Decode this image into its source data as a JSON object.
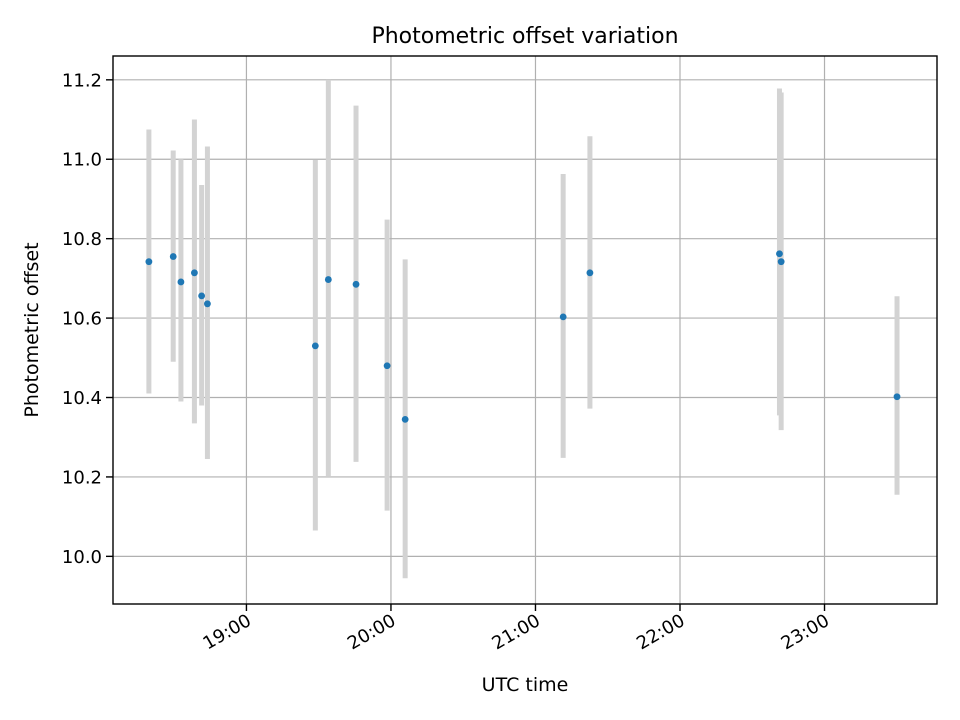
{
  "chart_data": {
    "type": "scatter",
    "title": "Photometric offset variation",
    "xlabel": "UTC time",
    "ylabel": "Photometric offset",
    "x_unit": "minutes since 00:00 UTC",
    "xlim": [
      1084.6,
      1426.7
    ],
    "ylim": [
      9.88,
      11.26
    ],
    "grid": true,
    "series": [
      {
        "name": "offset",
        "color": "#1f77b4",
        "errorbar_color": "#d3d3d3",
        "points": [
          {
            "x": 1099.5,
            "y": 10.742,
            "lo": 10.41,
            "hi": 11.075
          },
          {
            "x": 1109.6,
            "y": 10.755,
            "lo": 10.49,
            "hi": 11.022
          },
          {
            "x": 1112.8,
            "y": 10.691,
            "lo": 10.39,
            "hi": 11.0
          },
          {
            "x": 1118.4,
            "y": 10.714,
            "lo": 10.335,
            "hi": 11.1
          },
          {
            "x": 1121.4,
            "y": 10.656,
            "lo": 10.38,
            "hi": 10.935
          },
          {
            "x": 1123.8,
            "y": 10.636,
            "lo": 10.245,
            "hi": 11.032
          },
          {
            "x": 1168.6,
            "y": 10.53,
            "lo": 10.065,
            "hi": 10.998
          },
          {
            "x": 1174.0,
            "y": 10.697,
            "lo": 10.2,
            "hi": 11.2
          },
          {
            "x": 1185.5,
            "y": 10.685,
            "lo": 10.238,
            "hi": 11.135
          },
          {
            "x": 1198.4,
            "y": 10.48,
            "lo": 10.115,
            "hi": 10.848
          },
          {
            "x": 1205.9,
            "y": 10.345,
            "lo": 9.945,
            "hi": 10.748
          },
          {
            "x": 1271.5,
            "y": 10.603,
            "lo": 10.248,
            "hi": 10.963
          },
          {
            "x": 1282.6,
            "y": 10.714,
            "lo": 10.372,
            "hi": 11.058
          },
          {
            "x": 1361.3,
            "y": 10.762,
            "lo": 10.355,
            "hi": 11.178
          },
          {
            "x": 1362.0,
            "y": 10.742,
            "lo": 10.318,
            "hi": 11.168
          },
          {
            "x": 1410.1,
            "y": 10.402,
            "lo": 10.155,
            "hi": 10.655
          }
        ]
      }
    ],
    "x_ticks": [
      {
        "value": 1140,
        "label": "19:00"
      },
      {
        "value": 1200,
        "label": "20:00"
      },
      {
        "value": 1260,
        "label": "21:00"
      },
      {
        "value": 1320,
        "label": "22:00"
      },
      {
        "value": 1380,
        "label": "23:00"
      }
    ],
    "y_ticks": [
      {
        "value": 10.0,
        "label": "10.0"
      },
      {
        "value": 10.2,
        "label": "10.2"
      },
      {
        "value": 10.4,
        "label": "10.4"
      },
      {
        "value": 10.6,
        "label": "10.6"
      },
      {
        "value": 10.8,
        "label": "10.8"
      },
      {
        "value": 11.0,
        "label": "11.0"
      },
      {
        "value": 11.2,
        "label": "11.2"
      }
    ]
  }
}
